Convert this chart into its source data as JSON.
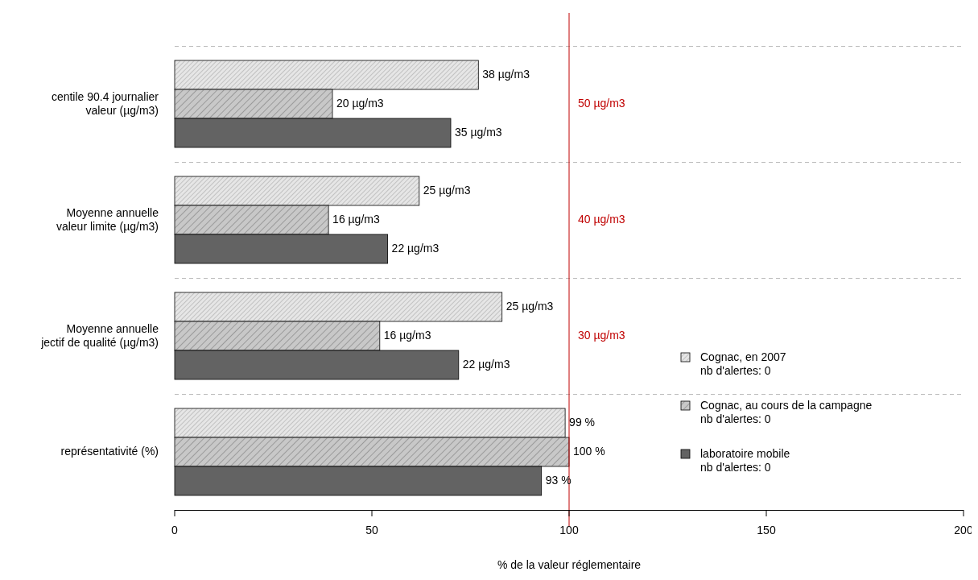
{
  "chart_data": {
    "type": "bar",
    "orientation": "horizontal",
    "xlabel": "% de la valeur réglementaire",
    "categories": [
      "centile 90.4 journalier\nvaleur (µg/m3)",
      "Moyenne annuelle\nvaleur limite (µg/m3)",
      "Moyenne annuelle\njectif de qualité (µg/m3)",
      "représentativité (%)"
    ],
    "series": [
      {
        "name": "Cognac, en 2007\nnb d'alertes: 0",
        "color": "#e6e6e6",
        "values": [
          77,
          62,
          83,
          99
        ]
      },
      {
        "name": "Cognac, au cours de la campagne\nnb d'alertes: 0",
        "color": "#c8c8c8",
        "values": [
          40,
          39,
          52,
          100
        ]
      },
      {
        "name": "laboratoire mobile\nnb d'alertes: 0",
        "color": "#636363",
        "values": [
          70,
          54,
          72,
          93
        ]
      }
    ],
    "xlim": [
      0,
      200
    ],
    "xticks": [
      0,
      50,
      100,
      150,
      200
    ],
    "ref_lines": [
      {
        "axis": "x",
        "value": 100,
        "color": "#c00000"
      }
    ],
    "annotations": [
      "50 µg/m3",
      "40 µg/m3",
      "30 µg/m3",
      "38 µg/m3",
      "20 µg/m3",
      "35 µg/m3",
      "25 µg/m3",
      "16 µg/m3",
      "22 µg/m3",
      "25 µg/m3",
      "16 µg/m3",
      "22 µg/m3",
      "99 %",
      "100 %",
      "93 %"
    ],
    "grid": "y",
    "legend": "right"
  }
}
